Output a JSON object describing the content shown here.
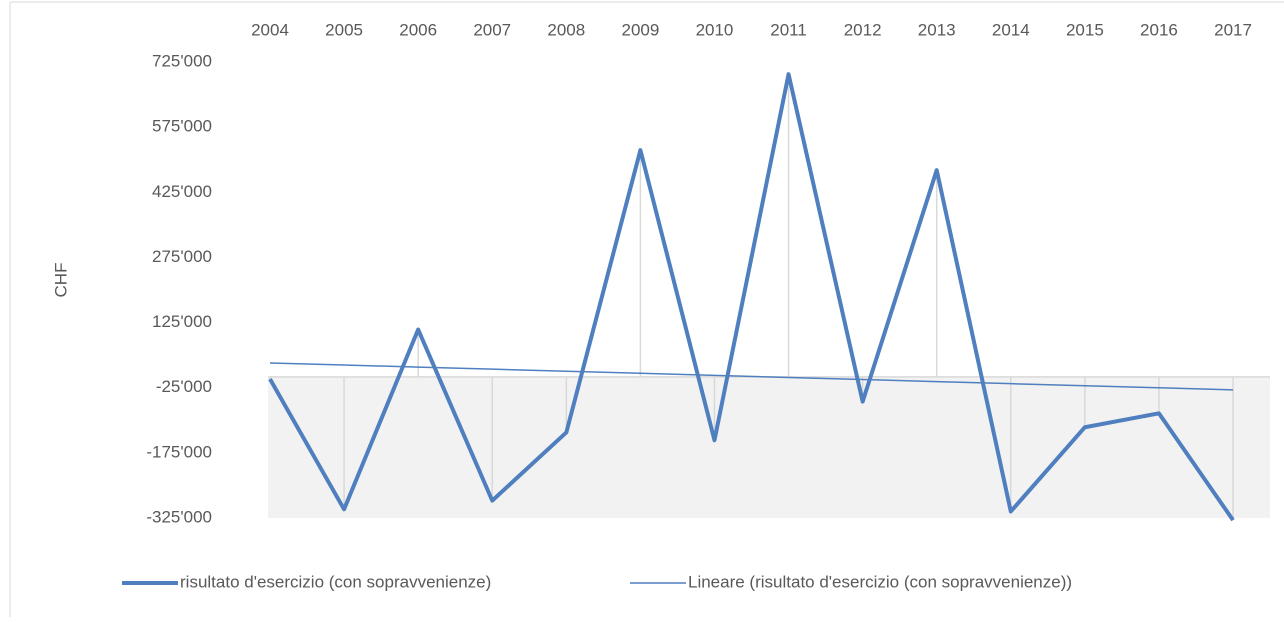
{
  "chart_data": {
    "type": "line",
    "categories": [
      "2004",
      "2005",
      "2006",
      "2007",
      "2008",
      "2009",
      "2010",
      "2011",
      "2012",
      "2013",
      "2014",
      "2015",
      "2016",
      "2017"
    ],
    "y_label": "CHF",
    "series": [
      {
        "name": "risultato d'esercizio (con sopravvenienze)",
        "color": "#4f7fbf",
        "width": 4,
        "values": [
          -5000,
          -305000,
          109000,
          -285000,
          -128000,
          522000,
          -146000,
          697000,
          -57000,
          476000,
          -310000,
          -116000,
          -84000,
          -330000
        ]
      },
      {
        "name": "Lineare (risultato d'esercizio (con sopravvenienze))",
        "color": "#4f7fbf",
        "width": 1.5,
        "values": [
          32000,
          27200,
          22500,
          17700,
          12900,
          8200,
          3400,
          -1400,
          -6200,
          -10900,
          -15700,
          -20500,
          -25200,
          -30000
        ]
      }
    ],
    "ylim": [
      -325000,
      725000
    ],
    "yticks": [
      {
        "value": 725000,
        "label": "725'000"
      },
      {
        "value": 575000,
        "label": "575'000"
      },
      {
        "value": 425000,
        "label": "425'000"
      },
      {
        "value": 275000,
        "label": "275'000"
      },
      {
        "value": 125000,
        "label": "125'000"
      },
      {
        "value": -25000,
        "label": "-25'000"
      },
      {
        "value": -175000,
        "label": "-175'000"
      },
      {
        "value": -325000,
        "label": "-325'000"
      }
    ],
    "drop_lines": true,
    "legend": "bottom"
  }
}
